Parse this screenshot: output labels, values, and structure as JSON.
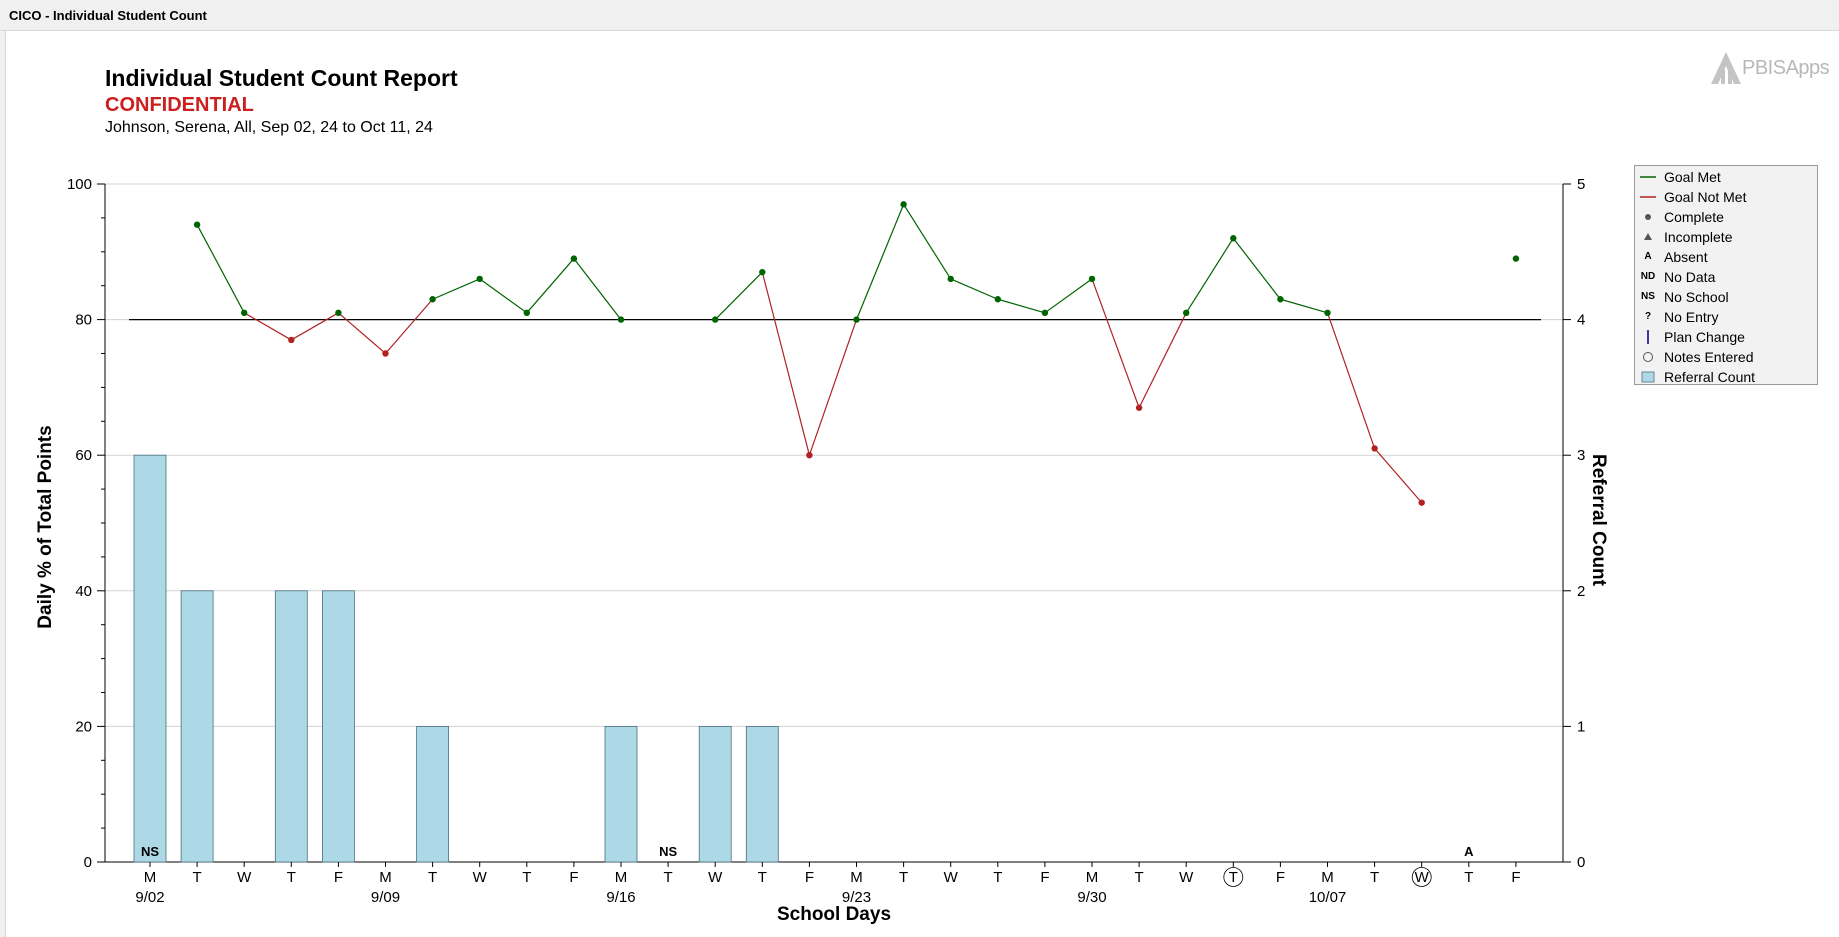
{
  "window": {
    "title": "CICO - Individual Student Count"
  },
  "header": {
    "title": "Individual Student Count Report",
    "confidential": "CONFIDENTIAL",
    "subtitle": "Johnson, Serena, All, Sep 02, 24 to Oct 11, 24",
    "logo_text": "PBISApps"
  },
  "colors": {
    "goal_met": "#006400",
    "goal_not_met": "#b22222",
    "bar_fill": "#add8e6",
    "bar_stroke": "#4a6f80",
    "goal_line": "#000000",
    "grid": "#d3d3d3"
  },
  "legend": {
    "items": [
      {
        "symbol": "line-green",
        "label": "Goal Met"
      },
      {
        "symbol": "line-red",
        "label": "Goal Not Met"
      },
      {
        "symbol": "dot",
        "label": "Complete"
      },
      {
        "symbol": "triangle",
        "label": "Incomplete"
      },
      {
        "symbol": "A",
        "label": "Absent"
      },
      {
        "symbol": "ND",
        "label": "No Data"
      },
      {
        "symbol": "NS",
        "label": "No School"
      },
      {
        "symbol": "?",
        "label": "No Entry"
      },
      {
        "symbol": "bar-blue",
        "label": "Plan Change"
      },
      {
        "symbol": "circle",
        "label": "Notes Entered"
      },
      {
        "symbol": "square-lightblue",
        "label": "Referral Count"
      }
    ]
  },
  "chart_data": {
    "type": "bar+line",
    "xlabel": "School Days",
    "ylabel": "Daily % of Total Points",
    "y2label": "Referral Count",
    "ylim": [
      0,
      100
    ],
    "y2lim": [
      0,
      5
    ],
    "yticks": [
      "0",
      "20",
      "40",
      "60",
      "80",
      "100"
    ],
    "y2ticks": [
      "0",
      "1",
      "2",
      "3",
      "4",
      "5"
    ],
    "goal": 80,
    "grid": true,
    "legend_position": "right",
    "days": [
      "M",
      "T",
      "W",
      "T",
      "F",
      "M",
      "T",
      "W",
      "T",
      "F",
      "M",
      "T",
      "W",
      "T",
      "F",
      "M",
      "T",
      "W",
      "T",
      "F",
      "M",
      "T",
      "W",
      "T",
      "F",
      "M",
      "T",
      "W",
      "T",
      "F"
    ],
    "week_labels": [
      {
        "index": 0,
        "label": "9/02"
      },
      {
        "index": 5,
        "label": "9/09"
      },
      {
        "index": 10,
        "label": "9/16"
      },
      {
        "index": 15,
        "label": "9/23"
      },
      {
        "index": 20,
        "label": "9/30"
      },
      {
        "index": 25,
        "label": "10/07"
      }
    ],
    "percent": [
      null,
      94,
      81,
      77,
      81,
      75,
      83,
      86,
      81,
      89,
      80,
      null,
      80,
      87,
      60,
      80,
      97,
      86,
      83,
      81,
      86,
      67,
      81,
      92,
      83,
      81,
      61,
      53,
      null,
      89
    ],
    "referrals": [
      3,
      2,
      0,
      2,
      2,
      0,
      1,
      0,
      0,
      0,
      1,
      0,
      1,
      1,
      0,
      0,
      0,
      0,
      0,
      0,
      0,
      0,
      0,
      0,
      0,
      0,
      0,
      0,
      0,
      0
    ],
    "markers": [
      {
        "index": 0,
        "label": "NS"
      },
      {
        "index": 11,
        "label": "NS"
      },
      {
        "index": 28,
        "label": "A"
      }
    ],
    "notes_entered": [
      23,
      27
    ]
  }
}
